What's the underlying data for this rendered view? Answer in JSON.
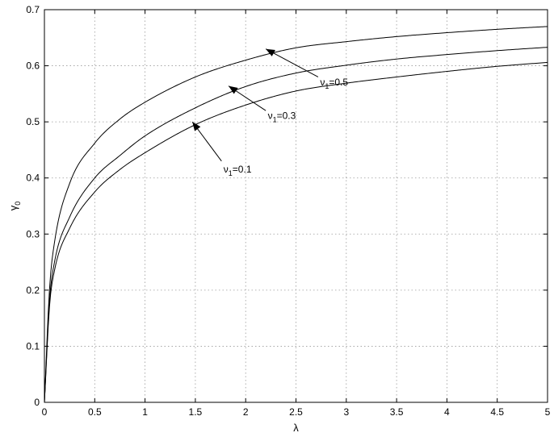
{
  "chart_data": {
    "type": "line",
    "xlabel": "λ",
    "ylabel": "γ",
    "ylabel_subscript": "0",
    "xlim": [
      0,
      5
    ],
    "ylim": [
      0,
      0.7
    ],
    "xticks": [
      0,
      0.5,
      1,
      1.5,
      2,
      2.5,
      3,
      3.5,
      4,
      4.5,
      5
    ],
    "xtick_labels": [
      "0",
      "0.5",
      "1",
      "1.5",
      "2",
      "2.5",
      "3",
      "3.5",
      "4",
      "4.5",
      "5"
    ],
    "yticks": [
      0,
      0.1,
      0.2,
      0.3,
      0.4,
      0.5,
      0.6,
      0.7
    ],
    "ytick_labels": [
      "0",
      "0.1",
      "0.2",
      "0.3",
      "0.4",
      "0.5",
      "0.6",
      "0.7"
    ],
    "grid": true,
    "line_color": "#000000",
    "grid_color": "#9a9a9a",
    "series": [
      {
        "x": [
          0,
          0.05,
          0.1,
          0.25,
          0.5,
          0.75,
          1,
          1.5,
          2,
          2.5,
          3,
          3.5,
          4,
          4.5,
          5
        ],
        "values": [
          0,
          0.17,
          0.235,
          0.31,
          0.375,
          0.415,
          0.445,
          0.495,
          0.53,
          0.555,
          0.569,
          0.58,
          0.59,
          0.599,
          0.606
        ]
      },
      {
        "x": [
          0,
          0.05,
          0.1,
          0.25,
          0.5,
          0.75,
          1,
          1.5,
          2,
          2.5,
          3,
          3.5,
          4,
          4.5,
          5
        ],
        "values": [
          0,
          0.18,
          0.25,
          0.33,
          0.4,
          0.44,
          0.475,
          0.525,
          0.563,
          0.587,
          0.601,
          0.612,
          0.62,
          0.627,
          0.633
        ]
      },
      {
        "x": [
          0,
          0.05,
          0.1,
          0.25,
          0.5,
          0.75,
          1,
          1.5,
          2,
          2.5,
          3,
          3.5,
          4,
          4.5,
          5
        ],
        "values": [
          0,
          0.2,
          0.285,
          0.39,
          0.462,
          0.505,
          0.535,
          0.58,
          0.61,
          0.632,
          0.643,
          0.652,
          0.659,
          0.665,
          0.67
        ]
      }
    ],
    "annotations": [
      {
        "prefix": "ν",
        "sub": "1",
        "suffix": "=0.1",
        "text_at": [
          1.78,
          0.41
        ],
        "arrow_from": [
          1.76,
          0.43
        ],
        "arrow_to": [
          1.47,
          0.5
        ]
      },
      {
        "prefix": "ν",
        "sub": "1",
        "suffix": "=0.3",
        "text_at": [
          2.22,
          0.505
        ],
        "arrow_from": [
          2.2,
          0.52
        ],
        "arrow_to": [
          1.83,
          0.564
        ]
      },
      {
        "prefix": "ν",
        "sub": "1",
        "suffix": "=0.5",
        "text_at": [
          2.74,
          0.565
        ],
        "arrow_from": [
          2.72,
          0.58
        ],
        "arrow_to": [
          2.2,
          0.63
        ]
      }
    ]
  }
}
